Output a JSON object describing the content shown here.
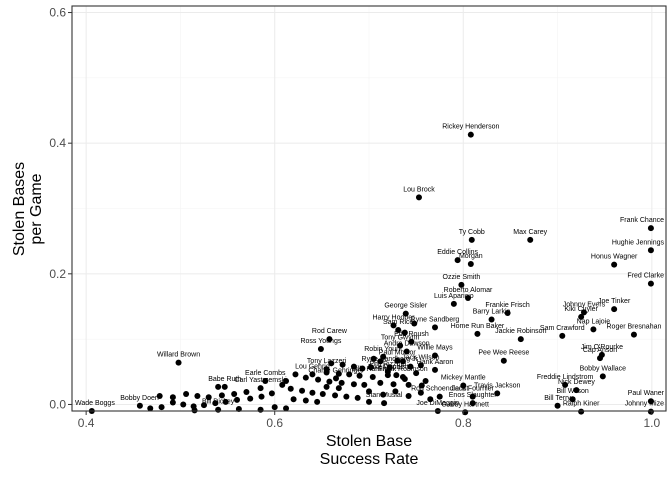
{
  "chart_data": {
    "type": "scatter",
    "xlabel_lines": [
      "Stolen Base",
      "Success Rate"
    ],
    "ylabel_lines": [
      "Stolen Bases",
      "per Game"
    ],
    "xlim": [
      0.385,
      1.015
    ],
    "ylim": [
      -0.01,
      0.61
    ],
    "x_ticks": [
      0.4,
      0.6,
      0.8,
      1.0
    ],
    "x_tick_labels": [
      "0.4",
      "0.6",
      "0.8",
      "1.0"
    ],
    "y_ticks": [
      0.0,
      0.2,
      0.4,
      0.6
    ],
    "y_tick_labels": [
      "0.0",
      "0.2",
      "0.4",
      "0.6"
    ],
    "grid": true,
    "labeled_points": [
      {
        "name": "Rickey Henderson",
        "x": 0.808,
        "y": 0.413
      },
      {
        "name": "Lou Brock",
        "x": 0.753,
        "y": 0.317
      },
      {
        "name": "Ty Cobb",
        "x": 0.809,
        "y": 0.252
      },
      {
        "name": "Max Carey",
        "x": 0.871,
        "y": 0.252
      },
      {
        "name": "Frank Chance",
        "x": 0.999,
        "y": 0.27
      },
      {
        "name": "Hughie Jennings",
        "x": 0.999,
        "y": 0.236
      },
      {
        "name": "Honus Wagner",
        "x": 0.96,
        "y": 0.214
      },
      {
        "name": "Eddie Collins",
        "x": 0.794,
        "y": 0.221
      },
      {
        "name": "Morgan",
        "x": 0.808,
        "y": 0.215
      },
      {
        "name": "Fred Clarke",
        "x": 0.999,
        "y": 0.185
      },
      {
        "name": "Ozzie Smith",
        "x": 0.798,
        "y": 0.183
      },
      {
        "name": "Roberto Alomar",
        "x": 0.805,
        "y": 0.163
      },
      {
        "name": "Luis Aparicio",
        "x": 0.79,
        "y": 0.154
      },
      {
        "name": "Frankie Frisch",
        "x": 0.847,
        "y": 0.14
      },
      {
        "name": "George Sisler",
        "x": 0.739,
        "y": 0.139
      },
      {
        "name": "Barry Larkin",
        "x": 0.83,
        "y": 0.13
      },
      {
        "name": "Johnny Evers",
        "x": 0.928,
        "y": 0.141
      },
      {
        "name": "Joe Tinker",
        "x": 0.96,
        "y": 0.146
      },
      {
        "name": "Kiki Cuyler",
        "x": 0.925,
        "y": 0.134
      },
      {
        "name": "Harry Hooper",
        "x": 0.726,
        "y": 0.121
      },
      {
        "name": "Ryne Sandberg",
        "x": 0.77,
        "y": 0.118
      },
      {
        "name": "Nap Lajoie",
        "x": 0.938,
        "y": 0.115
      },
      {
        "name": "Sam Rice",
        "x": 0.731,
        "y": 0.114
      },
      {
        "name": "Home Run Baker",
        "x": 0.815,
        "y": 0.108
      },
      {
        "name": "Sam Crawford",
        "x": 0.905,
        "y": 0.105
      },
      {
        "name": "Roger Bresnahan",
        "x": 0.981,
        "y": 0.107
      },
      {
        "name": "Rod Carew",
        "x": 0.658,
        "y": 0.1
      },
      {
        "name": "Jackie Robinson",
        "x": 0.861,
        "y": 0.1
      },
      {
        "name": "Edd Roush",
        "x": 0.745,
        "y": 0.096
      },
      {
        "name": "Tony Gwynn",
        "x": 0.733,
        "y": 0.09
      },
      {
        "name": "Ross Youngs",
        "x": 0.649,
        "y": 0.085
      },
      {
        "name": "Jim O'Rourke",
        "x": 0.947,
        "y": 0.076
      },
      {
        "name": "Andre Dawson",
        "x": 0.74,
        "y": 0.081
      },
      {
        "name": "Willie Mays",
        "x": 0.77,
        "y": 0.075
      },
      {
        "name": "Cap Anson",
        "x": 0.945,
        "y": 0.071
      },
      {
        "name": "Robin Yount",
        "x": 0.715,
        "y": 0.073
      },
      {
        "name": "Pee Wee Reese",
        "x": 0.843,
        "y": 0.067
      },
      {
        "name": "Willard Brown",
        "x": 0.498,
        "y": 0.064
      },
      {
        "name": "Paul Molitor",
        "x": 0.73,
        "y": 0.067
      },
      {
        "name": "Bobby Wallace",
        "x": 0.948,
        "y": 0.043
      },
      {
        "name": "Jack Wilson",
        "x": 0.755,
        "y": 0.06
      },
      {
        "name": "Tony Lazzeri",
        "x": 0.655,
        "y": 0.054
      },
      {
        "name": "Ryne Sandberg Jr",
        "x": 0.722,
        "y": 0.057
      },
      {
        "name": "Phil Rizzuto",
        "x": 0.72,
        "y": 0.05
      },
      {
        "name": "Hank Aaron",
        "x": 0.77,
        "y": 0.053
      },
      {
        "name": "Jake Daubert",
        "x": 0.72,
        "y": 0.045
      },
      {
        "name": "Billy Hamilton",
        "x": 0.704,
        "y": 0.042
      },
      {
        "name": "Frank Robinson",
        "x": 0.736,
        "y": 0.042
      },
      {
        "name": "Earle Combs",
        "x": 0.59,
        "y": 0.036
      },
      {
        "name": "Mickey Mantle",
        "x": 0.8,
        "y": 0.029
      },
      {
        "name": "Lou Gehrig",
        "x": 0.64,
        "y": 0.046
      },
      {
        "name": "Charlie Gehringer",
        "x": 0.665,
        "y": 0.04
      },
      {
        "name": "Freddie Lindstrom",
        "x": 0.908,
        "y": 0.03
      },
      {
        "name": "Nick Dewey",
        "x": 0.92,
        "y": 0.022
      },
      {
        "name": "Carl Yastrzemski",
        "x": 0.585,
        "y": 0.025
      },
      {
        "name": "Babe Ruth",
        "x": 0.547,
        "y": 0.027
      },
      {
        "name": "Travis Jackson",
        "x": 0.836,
        "y": 0.017
      },
      {
        "name": "Paul Waner",
        "x": 0.999,
        "y": 0.005
      },
      {
        "name": "Bill Wilson",
        "x": 0.916,
        "y": 0.008
      },
      {
        "name": "Rod Schoendienst",
        "x": 0.775,
        "y": 0.012
      },
      {
        "name": "Jack Fournier",
        "x": 0.81,
        "y": 0.012
      },
      {
        "name": "Enos Slaughter",
        "x": 0.81,
        "y": 0.002
      },
      {
        "name": "Stan Musial",
        "x": 0.716,
        "y": 0.002
      },
      {
        "name": "Bill Terry",
        "x": 0.9,
        "y": -0.002
      },
      {
        "name": "Joe DiMaggio",
        "x": 0.773,
        "y": -0.01
      },
      {
        "name": "Ralph Kiner",
        "x": 0.925,
        "y": -0.011
      },
      {
        "name": "Johnny Mize",
        "x": 0.999,
        "y": -0.011
      },
      {
        "name": "Gabby Hartnett",
        "x": 0.802,
        "y": -0.012
      },
      {
        "name": "Bill Dickey",
        "x": 0.54,
        "y": -0.008
      },
      {
        "name": "Bobby Doerr",
        "x": 0.457,
        "y": -0.002
      },
      {
        "name": "Wade Boggs",
        "x": 0.406,
        "y": -0.01
      }
    ],
    "unlabeled_points": [
      {
        "x": 0.66,
        "y": 0.063
      },
      {
        "x": 0.672,
        "y": 0.061
      },
      {
        "x": 0.684,
        "y": 0.058
      },
      {
        "x": 0.693,
        "y": 0.055
      },
      {
        "x": 0.702,
        "y": 0.057
      },
      {
        "x": 0.655,
        "y": 0.049
      },
      {
        "x": 0.668,
        "y": 0.047
      },
      {
        "x": 0.679,
        "y": 0.046
      },
      {
        "x": 0.69,
        "y": 0.044
      },
      {
        "x": 0.622,
        "y": 0.046
      },
      {
        "x": 0.633,
        "y": 0.041
      },
      {
        "x": 0.646,
        "y": 0.038
      },
      {
        "x": 0.658,
        "y": 0.035
      },
      {
        "x": 0.671,
        "y": 0.033
      },
      {
        "x": 0.684,
        "y": 0.031
      },
      {
        "x": 0.695,
        "y": 0.03
      },
      {
        "x": 0.712,
        "y": 0.033
      },
      {
        "x": 0.726,
        "y": 0.031
      },
      {
        "x": 0.742,
        "y": 0.03
      },
      {
        "x": 0.756,
        "y": 0.029
      },
      {
        "x": 0.608,
        "y": 0.03
      },
      {
        "x": 0.617,
        "y": 0.024
      },
      {
        "x": 0.629,
        "y": 0.021
      },
      {
        "x": 0.64,
        "y": 0.018
      },
      {
        "x": 0.651,
        "y": 0.016
      },
      {
        "x": 0.664,
        "y": 0.014
      },
      {
        "x": 0.676,
        "y": 0.012
      },
      {
        "x": 0.688,
        "y": 0.01
      },
      {
        "x": 0.597,
        "y": 0.017
      },
      {
        "x": 0.586,
        "y": 0.012
      },
      {
        "x": 0.574,
        "y": 0.009
      },
      {
        "x": 0.56,
        "y": 0.007
      },
      {
        "x": 0.548,
        "y": 0.004
      },
      {
        "x": 0.537,
        "y": 0.002
      },
      {
        "x": 0.525,
        "y": -0.001
      },
      {
        "x": 0.514,
        "y": -0.003
      },
      {
        "x": 0.503,
        "y": 0.0
      },
      {
        "x": 0.492,
        "y": 0.003
      },
      {
        "x": 0.48,
        "y": -0.004
      },
      {
        "x": 0.468,
        "y": -0.006
      },
      {
        "x": 0.506,
        "y": 0.016
      },
      {
        "x": 0.518,
        "y": 0.013
      },
      {
        "x": 0.53,
        "y": 0.011
      },
      {
        "x": 0.544,
        "y": 0.014
      },
      {
        "x": 0.557,
        "y": 0.016
      },
      {
        "x": 0.57,
        "y": 0.019
      },
      {
        "x": 0.62,
        "y": 0.008
      },
      {
        "x": 0.633,
        "y": 0.006
      },
      {
        "x": 0.645,
        "y": 0.004
      },
      {
        "x": 0.6,
        "y": -0.004
      },
      {
        "x": 0.612,
        "y": -0.006
      },
      {
        "x": 0.585,
        "y": -0.008
      },
      {
        "x": 0.562,
        "y": -0.007
      },
      {
        "x": 0.515,
        "y": -0.009
      },
      {
        "x": 0.7,
        "y": 0.02
      },
      {
        "x": 0.715,
        "y": 0.015
      },
      {
        "x": 0.728,
        "y": 0.02
      },
      {
        "x": 0.742,
        "y": 0.013
      },
      {
        "x": 0.755,
        "y": 0.018
      },
      {
        "x": 0.765,
        "y": 0.008
      },
      {
        "x": 0.729,
        "y": 0.045
      },
      {
        "x": 0.738,
        "y": 0.039
      },
      {
        "x": 0.744,
        "y": 0.058
      },
      {
        "x": 0.75,
        "y": 0.048
      },
      {
        "x": 0.76,
        "y": 0.036
      },
      {
        "x": 0.705,
        "y": 0.07
      },
      {
        "x": 0.712,
        "y": 0.066
      },
      {
        "x": 0.736,
        "y": 0.066
      },
      {
        "x": 0.738,
        "y": 0.11
      },
      {
        "x": 0.748,
        "y": 0.124
      },
      {
        "x": 0.478,
        "y": 0.013
      },
      {
        "x": 0.492,
        "y": 0.011
      },
      {
        "x": 0.54,
        "y": 0.027
      },
      {
        "x": 0.612,
        "y": 0.036
      },
      {
        "x": 0.7,
        "y": 0.004
      },
      {
        "x": 0.655,
        "y": 0.027
      },
      {
        "x": 0.668,
        "y": 0.025
      }
    ]
  }
}
